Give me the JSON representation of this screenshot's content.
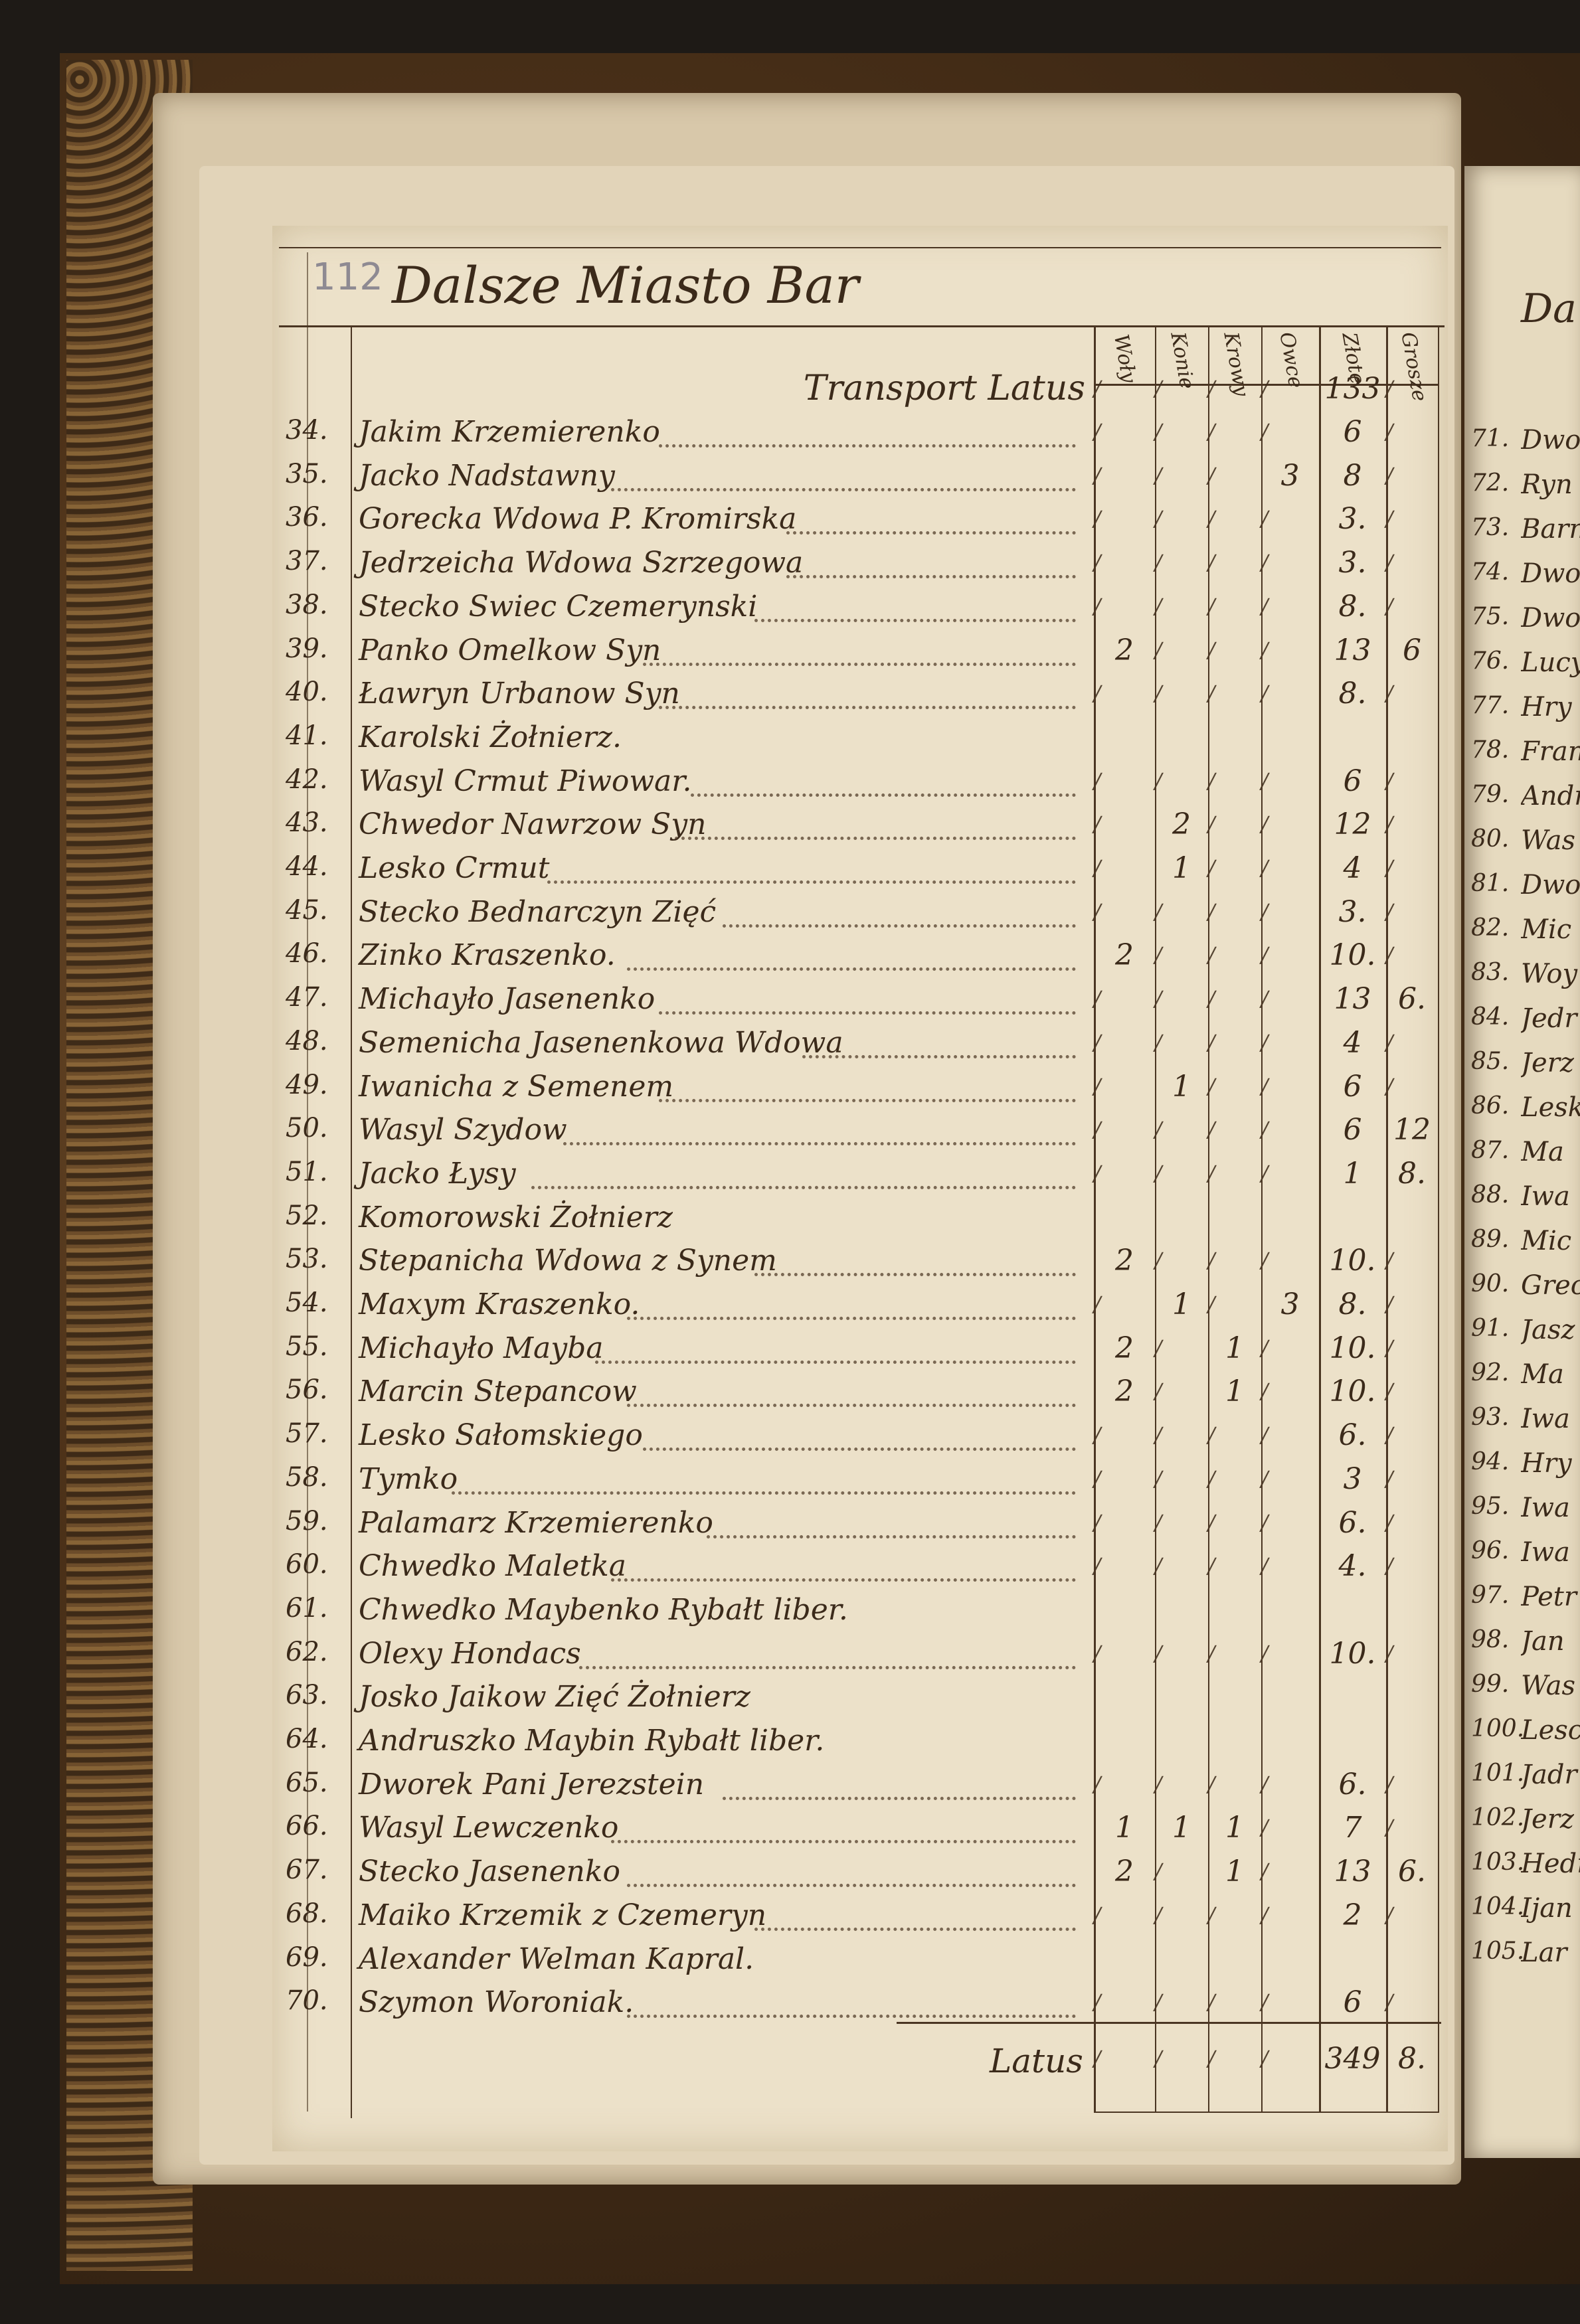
{
  "left_page": {
    "page_number": "112",
    "title": "Dalsze Miasto Bar",
    "columns": [
      "Woły",
      "Konie",
      "Krowy",
      "Owce",
      "Złote",
      "Grosze"
    ],
    "tick_mark": "/",
    "transport": {
      "label": "Transport Latus",
      "values": [
        "",
        "",
        "",
        "",
        "133",
        ""
      ]
    },
    "rows": [
      {
        "n": "34.",
        "name": "Jakim Krzemierenko",
        "cells": [
          "",
          "",
          "",
          "",
          "6",
          ""
        ]
      },
      {
        "n": "35.",
        "name": "Jacko Nadstawny",
        "cells": [
          "",
          "",
          "",
          "3",
          "8",
          ""
        ]
      },
      {
        "n": "36.",
        "name": "Gorecka Wdowa P. Kromirska",
        "cells": [
          "",
          "",
          "",
          "",
          "3.",
          ""
        ]
      },
      {
        "n": "37.",
        "name": "Jedrzeicha Wdowa Szrzegowa",
        "cells": [
          "",
          "",
          "",
          "",
          "3.",
          ""
        ]
      },
      {
        "n": "38.",
        "name": "Stecko Swiec Czemerynski",
        "cells": [
          "",
          "",
          "",
          "",
          "8.",
          ""
        ]
      },
      {
        "n": "39.",
        "name": "Panko Omelkow Syn",
        "cells": [
          "2",
          "",
          "",
          "",
          "13",
          "6"
        ]
      },
      {
        "n": "40.",
        "name": "Ławryn Urbanow Syn",
        "cells": [
          "",
          "",
          "",
          "",
          "8.",
          ""
        ]
      },
      {
        "n": "41.",
        "name": "Karolski Żołnierz.",
        "cells": null
      },
      {
        "n": "42.",
        "name": "Wasyl Crmut Piwowar.",
        "cells": [
          "",
          "",
          "",
          "",
          "6",
          ""
        ]
      },
      {
        "n": "43.",
        "name": "Chwedor Nawrzow Syn",
        "cells": [
          "",
          "2",
          "",
          "",
          "12",
          ""
        ]
      },
      {
        "n": "44.",
        "name": "Lesko Crmut",
        "cells": [
          "",
          "1",
          "",
          "",
          "4",
          ""
        ]
      },
      {
        "n": "45.",
        "name": "Stecko Bednarczyn Zięć",
        "cells": [
          "",
          "",
          "",
          "",
          "3.",
          ""
        ]
      },
      {
        "n": "46.",
        "name": "Zinko Kraszenko.",
        "cells": [
          "2",
          "",
          "",
          "",
          "10.",
          ""
        ]
      },
      {
        "n": "47.",
        "name": "Michayło Jasenenko",
        "cells": [
          "",
          "",
          "",
          "",
          "13",
          "6."
        ]
      },
      {
        "n": "48.",
        "name": "Semenicha Jasenenkowa Wdowa",
        "cells": [
          "",
          "",
          "",
          "",
          "4",
          ""
        ]
      },
      {
        "n": "49.",
        "name": "Iwanicha z Semenem",
        "cells": [
          "",
          "1",
          "",
          "",
          "6",
          ""
        ]
      },
      {
        "n": "50.",
        "name": "Wasyl Szydow",
        "cells": [
          "",
          "",
          "",
          "",
          "6",
          "12"
        ]
      },
      {
        "n": "51.",
        "name": "Jacko Łysy",
        "cells": [
          "",
          "",
          "",
          "",
          "1",
          "8."
        ]
      },
      {
        "n": "52.",
        "name": "Komorowski Żołnierz",
        "cells": null
      },
      {
        "n": "53.",
        "name": "Stepanicha Wdowa z Synem",
        "cells": [
          "2",
          "",
          "",
          "",
          "10.",
          ""
        ]
      },
      {
        "n": "54.",
        "name": "Maxym Kraszenko.",
        "cells": [
          "",
          "1",
          "",
          "3",
          "8.",
          ""
        ]
      },
      {
        "n": "55.",
        "name": "Michayło Mayba",
        "cells": [
          "2",
          "",
          "1",
          "",
          "10.",
          ""
        ]
      },
      {
        "n": "56.",
        "name": "Marcin Stepancow",
        "cells": [
          "2",
          "",
          "1",
          "",
          "10.",
          ""
        ]
      },
      {
        "n": "57.",
        "name": "Lesko Sałomskiego",
        "cells": [
          "",
          "",
          "",
          "",
          "6.",
          ""
        ]
      },
      {
        "n": "58.",
        "name": "Tymko",
        "cells": [
          "",
          "",
          "",
          "",
          "3",
          ""
        ]
      },
      {
        "n": "59.",
        "name": "Palamarz Krzemierenko",
        "cells": [
          "",
          "",
          "",
          "",
          "6.",
          ""
        ]
      },
      {
        "n": "60.",
        "name": "Chwedko Maletka",
        "cells": [
          "",
          "",
          "",
          "",
          "4.",
          ""
        ]
      },
      {
        "n": "61.",
        "name": "Chwedko Maybenko Rybałt liber.",
        "cells": null
      },
      {
        "n": "62.",
        "name": "Olexy Hondacs",
        "cells": [
          "",
          "",
          "",
          "",
          "10.",
          ""
        ]
      },
      {
        "n": "63.",
        "name": "Josko Jaikow Zięć Żołnierz",
        "cells": null
      },
      {
        "n": "64.",
        "name": "Andruszko Maybin Rybałt liber.",
        "cells": null
      },
      {
        "n": "65.",
        "name": "Dworek Pani Jerezstein",
        "cells": [
          "",
          "",
          "",
          "",
          "6.",
          ""
        ]
      },
      {
        "n": "66.",
        "name": "Wasyl Lewczenko",
        "cells": [
          "1",
          "1",
          "1",
          "",
          "7",
          ""
        ]
      },
      {
        "n": "67.",
        "name": "Stecko Jasenenko",
        "cells": [
          "2",
          "",
          "1",
          "",
          "13",
          "6."
        ]
      },
      {
        "n": "68.",
        "name": "Maiko Krzemik z Czemeryn",
        "cells": [
          "",
          "",
          "",
          "",
          "2",
          ""
        ]
      },
      {
        "n": "69.",
        "name": "Alexander Welman Kapral.",
        "cells": null
      },
      {
        "n": "70.",
        "name": "Szymon Woroniak.",
        "cells": [
          "",
          "",
          "",
          "",
          "6",
          ""
        ]
      }
    ],
    "latus": {
      "label": "Latus",
      "values": [
        "",
        "",
        "",
        "",
        "349",
        "8."
      ]
    }
  },
  "right_page": {
    "header": "Da",
    "rows": [
      {
        "n": "71.",
        "name": "Dwo"
      },
      {
        "n": "72.",
        "name": "Ryn"
      },
      {
        "n": "73.",
        "name": "Barn"
      },
      {
        "n": "74.",
        "name": "Dwo"
      },
      {
        "n": "75.",
        "name": "Dwo"
      },
      {
        "n": "76.",
        "name": "Lucy"
      },
      {
        "n": "77.",
        "name": "Hry"
      },
      {
        "n": "78.",
        "name": "Fran"
      },
      {
        "n": "79.",
        "name": "Andr"
      },
      {
        "n": "80.",
        "name": "Was"
      },
      {
        "n": "81.",
        "name": "Dwor"
      },
      {
        "n": "82.",
        "name": "Mic"
      },
      {
        "n": "83.",
        "name": "Woy"
      },
      {
        "n": "84.",
        "name": "Jedr"
      },
      {
        "n": "85.",
        "name": "Jerz"
      },
      {
        "n": "86.",
        "name": "Lesk"
      },
      {
        "n": "87.",
        "name": "Ma"
      },
      {
        "n": "88.",
        "name": "Iwa"
      },
      {
        "n": "89.",
        "name": "Mic"
      },
      {
        "n": "90.",
        "name": "Grec"
      },
      {
        "n": "91.",
        "name": "Jasz"
      },
      {
        "n": "92.",
        "name": "Ma"
      },
      {
        "n": "93.",
        "name": "Iwa"
      },
      {
        "n": "94.",
        "name": "Hry"
      },
      {
        "n": "95.",
        "name": "Iwa"
      },
      {
        "n": "96.",
        "name": "Iwa"
      },
      {
        "n": "97.",
        "name": "Petr"
      },
      {
        "n": "98.",
        "name": "Jan"
      },
      {
        "n": "99.",
        "name": "Was"
      },
      {
        "n": "100.",
        "name": "Lesc"
      },
      {
        "n": "101.",
        "name": "Jadr"
      },
      {
        "n": "102.",
        "name": "Jerz"
      },
      {
        "n": "103.",
        "name": "Hedr"
      },
      {
        "n": "104.",
        "name": "Ijan"
      },
      {
        "n": "105.",
        "name": "Lar"
      }
    ]
  },
  "colors": {
    "ink": "#3b2a1a",
    "paper": "#ece1c9",
    "cover": "#4d3219"
  }
}
